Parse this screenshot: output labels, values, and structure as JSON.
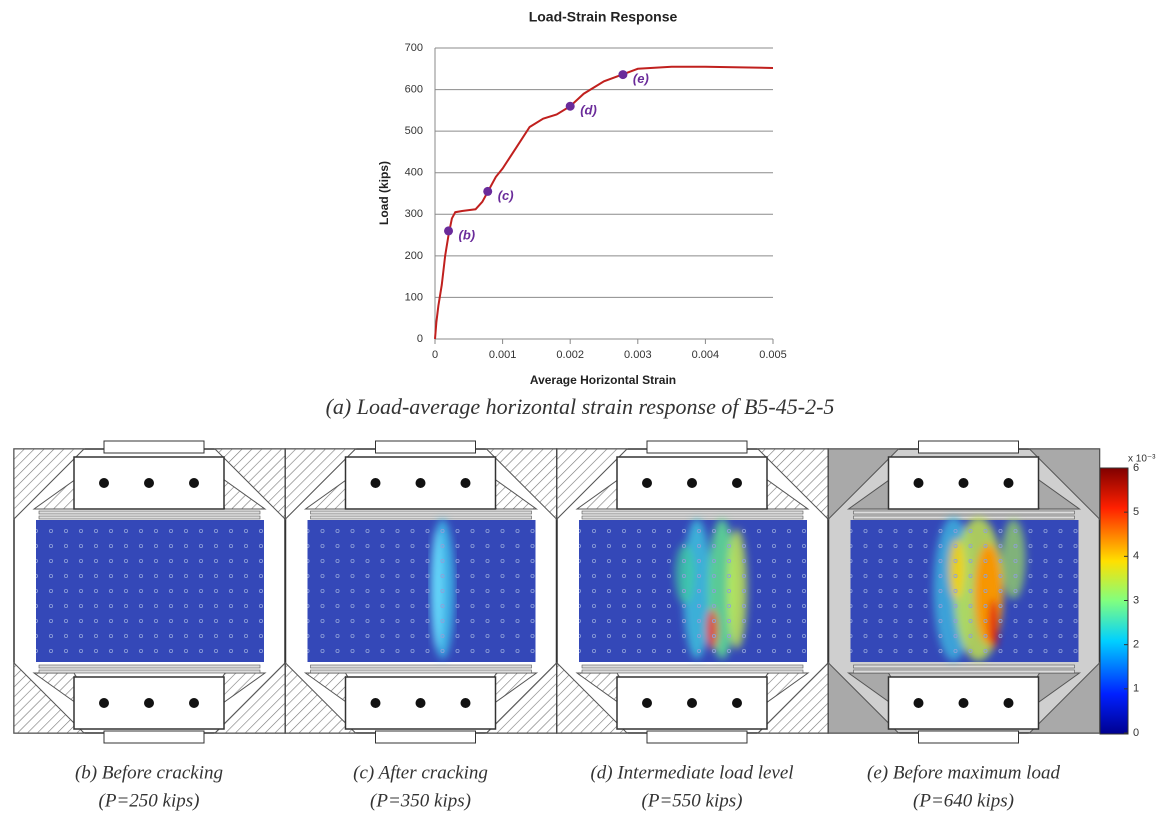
{
  "chart_data": {
    "type": "line",
    "title": "Load-Strain Response",
    "x_label": "Average Horizontal Strain",
    "y_label": "Load (kips)",
    "xlim": [
      0,
      0.005
    ],
    "xticks": [
      0,
      0.001,
      0.002,
      0.003,
      0.004,
      0.005
    ],
    "ylim": [
      0,
      700
    ],
    "yticks": [
      0,
      100,
      200,
      300,
      400,
      500,
      600,
      700
    ],
    "grid": true,
    "x": [
      0,
      2e-05,
      5e-05,
      0.0001,
      0.00015,
      0.0002,
      0.00025,
      0.0003,
      0.0004,
      0.0005,
      0.0006,
      0.0007,
      0.0008,
      0.0009,
      0.001,
      0.0012,
      0.0014,
      0.0016,
      0.0018,
      0.002,
      0.0022,
      0.0025,
      0.0028,
      0.003,
      0.0035,
      0.004,
      0.005
    ],
    "series": [
      {
        "color": "#c0201e",
        "values": [
          0,
          40,
          80,
          130,
          200,
          250,
          290,
          305,
          308,
          310,
          312,
          330,
          360,
          390,
          410,
          460,
          510,
          530,
          540,
          560,
          590,
          620,
          638,
          650,
          655,
          655,
          652
        ]
      }
    ],
    "points": [
      {
        "label": "(b)",
        "x": 0.0002,
        "y": 260,
        "color": "#6a2b9a"
      },
      {
        "label": "(c)",
        "x": 0.00078,
        "y": 355,
        "color": "#6a2b9a"
      },
      {
        "label": "(d)",
        "x": 0.002,
        "y": 560,
        "color": "#6a2b9a"
      },
      {
        "label": "(e)",
        "x": 0.00278,
        "y": 636,
        "color": "#6a2b9a"
      }
    ]
  },
  "figure": {
    "caption": "(a) Load-average horizontal strain response of B5-45-2-5",
    "panels": [
      {
        "caption": "(b) Before cracking",
        "load": "(P=250 kips)"
      },
      {
        "caption": "(c) After cracking",
        "load": "(P=350 kips)"
      },
      {
        "caption": "(d) Intermediate load level",
        "load": "(P=550 kips)"
      },
      {
        "caption": "(e) Before maximum load",
        "load": "(P=640 kips)"
      }
    ],
    "colorbar": {
      "ticks": [
        0,
        1,
        2,
        3,
        4,
        5,
        6
      ],
      "scale": "x 10⁻³"
    }
  }
}
